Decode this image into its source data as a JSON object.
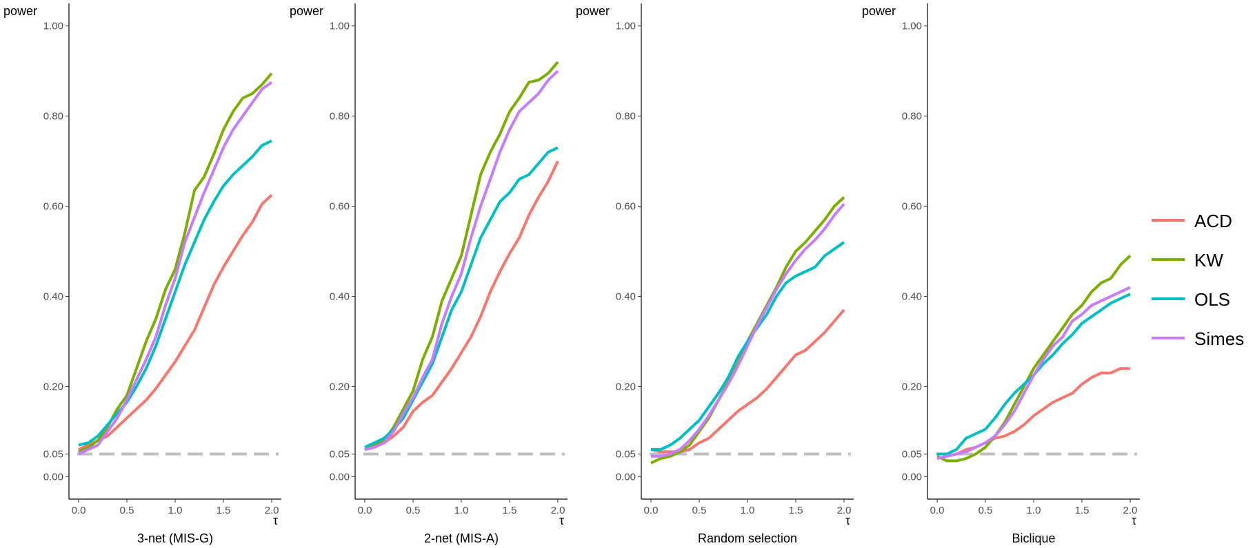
{
  "chart_data": {
    "type": "line",
    "ylabel": "power",
    "xlabel": "τ",
    "x": [
      0.0,
      0.1,
      0.2,
      0.3,
      0.4,
      0.5,
      0.6,
      0.7,
      0.8,
      0.9,
      1.0,
      1.1,
      1.2,
      1.3,
      1.4,
      1.5,
      1.6,
      1.7,
      1.8,
      1.9,
      2.0
    ],
    "xticks": [
      "0.0",
      "0.5",
      "1.0",
      "1.5",
      "2.0"
    ],
    "xlim": [
      -0.1,
      2.1
    ],
    "yticks": [
      "0.00",
      "0.05",
      "0.20",
      "0.40",
      "0.60",
      "0.80",
      "1.00"
    ],
    "ytick_values": [
      0.0,
      0.05,
      0.2,
      0.4,
      0.6,
      0.8,
      1.0
    ],
    "ylim": [
      -0.05,
      1.05
    ],
    "reference_line": {
      "y": 0.05,
      "style": "dashed",
      "color": "#bebebe"
    },
    "legend": {
      "position": "right",
      "entries": [
        {
          "name": "ACD",
          "color": "#F8766D"
        },
        {
          "name": "KW",
          "color": "#7CAE00"
        },
        {
          "name": "OLS",
          "color": "#00BFC4"
        },
        {
          "name": "Simes",
          "color": "#C77CFF"
        }
      ]
    },
    "panels": [
      {
        "title": "3-net (MIS-G)",
        "series": [
          {
            "name": "ACD",
            "values": [
              0.06,
              0.07,
              0.08,
              0.09,
              0.11,
              0.13,
              0.15,
              0.17,
              0.195,
              0.225,
              0.255,
              0.29,
              0.325,
              0.375,
              0.425,
              0.465,
              0.5,
              0.535,
              0.565,
              0.605,
              0.625
            ]
          },
          {
            "name": "KW",
            "values": [
              0.055,
              0.065,
              0.08,
              0.11,
              0.15,
              0.18,
              0.24,
              0.3,
              0.35,
              0.415,
              0.46,
              0.54,
              0.635,
              0.665,
              0.715,
              0.77,
              0.81,
              0.84,
              0.85,
              0.87,
              0.895
            ]
          },
          {
            "name": "OLS",
            "values": [
              0.07,
              0.075,
              0.09,
              0.115,
              0.14,
              0.165,
              0.2,
              0.24,
              0.29,
              0.35,
              0.41,
              0.47,
              0.52,
              0.57,
              0.61,
              0.645,
              0.67,
              0.69,
              0.71,
              0.735,
              0.745
            ]
          },
          {
            "name": "Simes",
            "values": [
              0.05,
              0.06,
              0.07,
              0.1,
              0.13,
              0.17,
              0.215,
              0.26,
              0.31,
              0.38,
              0.44,
              0.52,
              0.575,
              0.63,
              0.68,
              0.73,
              0.77,
              0.8,
              0.83,
              0.86,
              0.875
            ]
          }
        ]
      },
      {
        "title": "2-net (MIS-A)",
        "series": [
          {
            "name": "ACD",
            "values": [
              0.06,
              0.065,
              0.075,
              0.09,
              0.11,
              0.145,
              0.165,
              0.18,
              0.21,
              0.24,
              0.275,
              0.31,
              0.355,
              0.41,
              0.455,
              0.495,
              0.53,
              0.58,
              0.62,
              0.655,
              0.7
            ]
          },
          {
            "name": "KW",
            "values": [
              0.06,
              0.07,
              0.08,
              0.11,
              0.15,
              0.19,
              0.26,
              0.31,
              0.39,
              0.44,
              0.49,
              0.58,
              0.67,
              0.72,
              0.76,
              0.81,
              0.84,
              0.875,
              0.88,
              0.895,
              0.92
            ]
          },
          {
            "name": "OLS",
            "values": [
              0.065,
              0.075,
              0.085,
              0.105,
              0.13,
              0.17,
              0.21,
              0.25,
              0.31,
              0.37,
              0.41,
              0.47,
              0.53,
              0.57,
              0.61,
              0.63,
              0.66,
              0.67,
              0.695,
              0.72,
              0.73
            ]
          },
          {
            "name": "Simes",
            "values": [
              0.06,
              0.065,
              0.075,
              0.1,
              0.14,
              0.175,
              0.22,
              0.26,
              0.34,
              0.4,
              0.45,
              0.53,
              0.6,
              0.66,
              0.72,
              0.77,
              0.81,
              0.83,
              0.85,
              0.88,
              0.9
            ]
          }
        ]
      },
      {
        "title": "Random selection",
        "series": [
          {
            "name": "ACD",
            "values": [
              0.06,
              0.055,
              0.055,
              0.055,
              0.06,
              0.075,
              0.085,
              0.105,
              0.125,
              0.145,
              0.16,
              0.175,
              0.195,
              0.22,
              0.245,
              0.27,
              0.28,
              0.3,
              0.32,
              0.345,
              0.37
            ]
          },
          {
            "name": "KW",
            "values": [
              0.03,
              0.04,
              0.045,
              0.055,
              0.07,
              0.1,
              0.13,
              0.17,
              0.21,
              0.25,
              0.3,
              0.34,
              0.38,
              0.42,
              0.465,
              0.5,
              0.52,
              0.545,
              0.57,
              0.6,
              0.62
            ]
          },
          {
            "name": "OLS",
            "values": [
              0.06,
              0.06,
              0.07,
              0.085,
              0.105,
              0.125,
              0.155,
              0.185,
              0.22,
              0.265,
              0.3,
              0.33,
              0.36,
              0.4,
              0.43,
              0.445,
              0.455,
              0.465,
              0.49,
              0.505,
              0.52
            ]
          },
          {
            "name": "Simes",
            "values": [
              0.045,
              0.045,
              0.05,
              0.06,
              0.08,
              0.105,
              0.135,
              0.17,
              0.205,
              0.245,
              0.29,
              0.335,
              0.375,
              0.415,
              0.45,
              0.48,
              0.505,
              0.525,
              0.55,
              0.58,
              0.605
            ]
          }
        ]
      },
      {
        "title": "Biclique",
        "series": [
          {
            "name": "ACD",
            "values": [
              0.04,
              0.045,
              0.05,
              0.06,
              0.065,
              0.075,
              0.085,
              0.09,
              0.1,
              0.115,
              0.135,
              0.15,
              0.165,
              0.175,
              0.185,
              0.205,
              0.22,
              0.23,
              0.23,
              0.24,
              0.24
            ]
          },
          {
            "name": "KW",
            "values": [
              0.045,
              0.035,
              0.035,
              0.04,
              0.05,
              0.065,
              0.09,
              0.12,
              0.16,
              0.2,
              0.24,
              0.27,
              0.3,
              0.33,
              0.36,
              0.38,
              0.41,
              0.43,
              0.44,
              0.47,
              0.49
            ]
          },
          {
            "name": "OLS",
            "values": [
              0.05,
              0.05,
              0.06,
              0.085,
              0.095,
              0.105,
              0.13,
              0.16,
              0.185,
              0.205,
              0.225,
              0.25,
              0.27,
              0.295,
              0.315,
              0.34,
              0.355,
              0.37,
              0.385,
              0.395,
              0.405
            ]
          },
          {
            "name": "Simes",
            "values": [
              0.04,
              0.045,
              0.05,
              0.055,
              0.065,
              0.075,
              0.09,
              0.115,
              0.145,
              0.185,
              0.225,
              0.26,
              0.29,
              0.31,
              0.345,
              0.36,
              0.38,
              0.39,
              0.4,
              0.41,
              0.42
            ]
          }
        ]
      }
    ]
  }
}
